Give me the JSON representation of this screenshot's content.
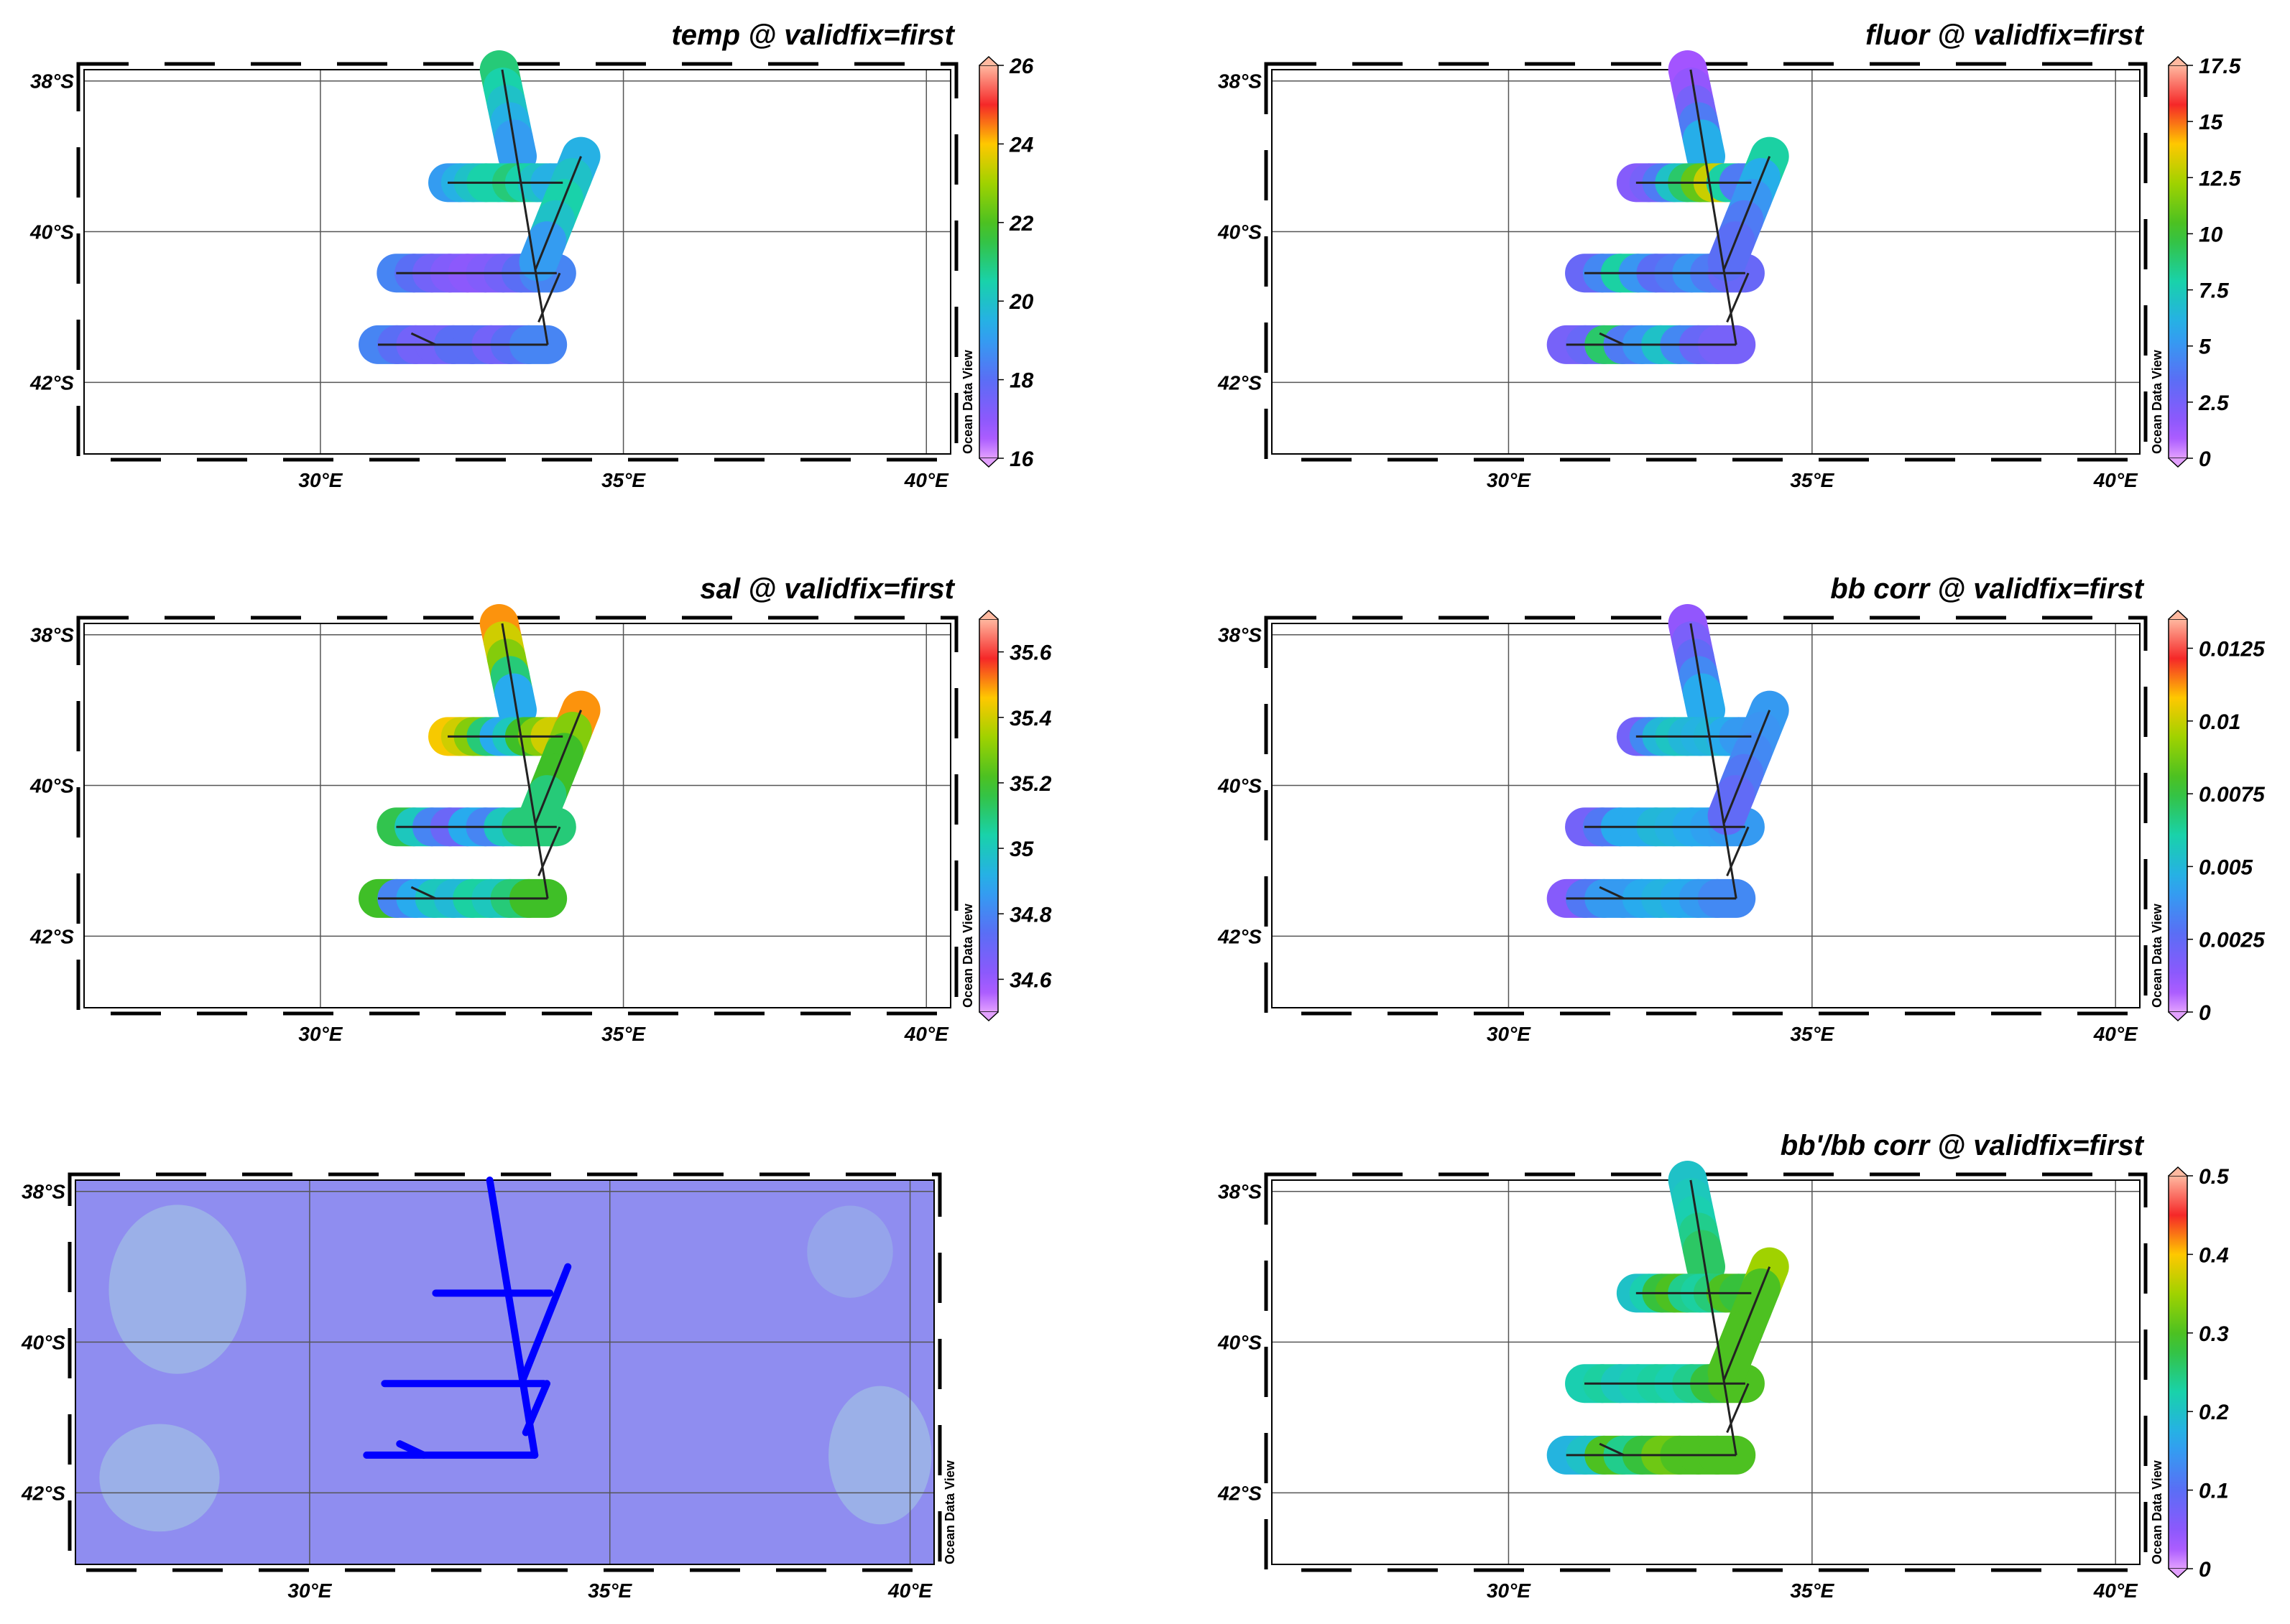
{
  "axes": {
    "lon_ticks": [
      "30°E",
      "35°E",
      "40°E"
    ],
    "lat_ticks": [
      "38°S",
      "40°S",
      "42°S"
    ]
  },
  "watermark": "Ocean Data View",
  "colors": {
    "track_overlay": "#222222",
    "station_markers": "#0000ff",
    "basemap_light": "#9db6e6",
    "basemap_dark": "#8f8df0"
  },
  "panels": [
    {
      "title": "temp @ validfix=first",
      "variable": "temp",
      "colorbar_labels": [
        "26",
        "24",
        "22",
        "20",
        "18",
        "16"
      ],
      "range": [
        16,
        26
      ],
      "segment_values": {
        "north_leg": [
          21,
          20.5,
          20,
          19.5,
          19
        ],
        "leg1": [
          19,
          19.5,
          20,
          20.5,
          20.5,
          21,
          20.5,
          20,
          19.5
        ],
        "leg2": [
          18.5,
          18,
          17.5,
          17.2,
          17,
          17.2,
          17.5,
          18,
          18.5
        ],
        "leg3": [
          18.5,
          18,
          17.5,
          17.5,
          18,
          18,
          17.5,
          18,
          18.5
        ],
        "diag": [
          19.5,
          20,
          20.5,
          20,
          19
        ]
      }
    },
    {
      "title": "fluor @ validfix=first",
      "variable": "fluor",
      "colorbar_labels": [
        "17.5",
        "15",
        "12.5",
        "10",
        "7.5",
        "5",
        "2.5",
        "0"
      ],
      "range": [
        0,
        17.5
      ],
      "segment_values": {
        "north_leg": [
          1,
          1.5,
          2.5,
          4,
          6
        ],
        "leg1": [
          2,
          2.5,
          4,
          7,
          9,
          11,
          13,
          8,
          4
        ],
        "leg2": [
          3,
          4.5,
          8,
          5,
          3.5,
          4,
          5,
          4,
          3
        ],
        "leg3": [
          2.5,
          3,
          9,
          4,
          5,
          7,
          4.5,
          3,
          2.5
        ],
        "diag": [
          8,
          6,
          5,
          4,
          3.5
        ]
      }
    },
    {
      "title": "sal @ validfix=first",
      "variable": "sal",
      "colorbar_labels": [
        "35.6",
        "35.4",
        "35.2",
        "35",
        "34.8",
        "34.6"
      ],
      "range": [
        34.5,
        35.7
      ],
      "segment_values": {
        "north_leg": [
          35.5,
          35.4,
          35.3,
          35.1,
          34.9
        ],
        "leg1": [
          35.45,
          35.4,
          35.3,
          35.1,
          34.9,
          35.0,
          35.2,
          35.3,
          35.4
        ],
        "leg2": [
          35.15,
          35.0,
          34.8,
          34.7,
          34.9,
          34.8,
          35.0,
          35.1,
          35.1
        ],
        "leg3": [
          35.2,
          34.8,
          34.9,
          35.0,
          34.95,
          35.05,
          35.0,
          35.1,
          35.2
        ],
        "diag": [
          35.5,
          35.3,
          35.2,
          35.2,
          35.1
        ]
      }
    },
    {
      "title": "bb corr @ validfix=first",
      "variable": "bb corr",
      "colorbar_labels": [
        "0.0125",
        "0.01",
        "0.0075",
        "0.005",
        "0.0025",
        "0"
      ],
      "range": [
        0,
        0.0135
      ],
      "segment_values": {
        "north_leg": [
          0.0012,
          0.0018,
          0.0025,
          0.0035,
          0.0045
        ],
        "leg1": [
          0.002,
          0.0035,
          0.005,
          0.0055,
          0.005,
          0.0048,
          0.005,
          0.0045,
          0.004
        ],
        "leg2": [
          0.002,
          0.003,
          0.0045,
          0.0045,
          0.005,
          0.0048,
          0.0045,
          0.0042,
          0.004
        ],
        "leg3": [
          0.0015,
          0.003,
          0.004,
          0.004,
          0.0045,
          0.0048,
          0.0045,
          0.004,
          0.0035
        ],
        "diag": [
          0.004,
          0.0038,
          0.0035,
          0.003,
          0.0025
        ]
      }
    },
    {
      "title": "",
      "variable": "stations",
      "colorbar_labels": [],
      "range": []
    },
    {
      "title": "bb'/bb corr @ validfix=first",
      "variable": "bb'/bb corr",
      "colorbar_labels": [
        "0.5",
        "0.4",
        "0.3",
        "0.2",
        "0.1",
        "0"
      ],
      "range": [
        0,
        0.5
      ],
      "segment_values": {
        "north_leg": [
          0.2,
          0.21,
          0.22,
          0.24,
          0.26
        ],
        "leg1": [
          0.2,
          0.22,
          0.28,
          0.3,
          0.24,
          0.23,
          0.25,
          0.3,
          0.28
        ],
        "leg2": [
          0.22,
          0.23,
          0.21,
          0.22,
          0.23,
          0.22,
          0.24,
          0.28,
          0.3
        ],
        "leg3": [
          0.18,
          0.2,
          0.3,
          0.24,
          0.28,
          0.32,
          0.3,
          0.3,
          0.3
        ],
        "diag": [
          0.35,
          0.3,
          0.3,
          0.3,
          0.3
        ]
      }
    }
  ]
}
